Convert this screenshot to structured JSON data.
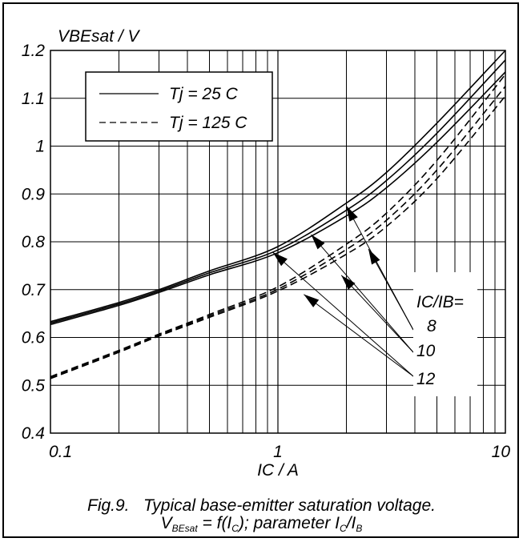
{
  "chart_data": {
    "type": "line",
    "title": "",
    "ylabel": "VBEsat / V",
    "xlabel": "IC / A",
    "x_scale": "log",
    "xlim": [
      0.1,
      10
    ],
    "ylim": [
      0.4,
      1.2
    ],
    "grid": true,
    "x_tick_labels": [
      "0.1",
      "1",
      "10"
    ],
    "y_tick_labels": [
      "1.2",
      "1.1",
      "1",
      "0.9",
      "0.8",
      "0.7",
      "0.6",
      "0.5",
      "0.4"
    ],
    "legend": {
      "placement": "top-left",
      "entries": [
        {
          "label": "Tj = 25 C",
          "style": "solid"
        },
        {
          "label": "Tj = 125 C",
          "style": "dashed"
        }
      ]
    },
    "annotations": {
      "header": "IC/IB=",
      "values": [
        "8",
        "10",
        "12"
      ]
    },
    "x": [
      0.1,
      0.2,
      0.3,
      0.5,
      1,
      2,
      3,
      5,
      10
    ],
    "series": [
      {
        "style": "solid",
        "ic_ib": "8",
        "values": [
          0.633,
          0.673,
          0.7,
          0.739,
          0.79,
          0.881,
          0.945,
          1.048,
          1.2
        ]
      },
      {
        "style": "solid",
        "ic_ib": "10",
        "values": [
          0.63,
          0.67,
          0.697,
          0.735,
          0.783,
          0.866,
          0.928,
          1.027,
          1.18
        ]
      },
      {
        "style": "solid",
        "ic_ib": "12",
        "values": [
          0.627,
          0.667,
          0.694,
          0.731,
          0.777,
          0.854,
          0.913,
          1.008,
          1.155
        ]
      },
      {
        "style": "dashed",
        "ic_ib": "8",
        "values": [
          0.518,
          0.573,
          0.607,
          0.648,
          0.706,
          0.795,
          0.86,
          0.97,
          1.15
        ]
      },
      {
        "style": "dashed",
        "ic_ib": "10",
        "values": [
          0.516,
          0.571,
          0.605,
          0.645,
          0.701,
          0.784,
          0.845,
          0.95,
          1.125
        ]
      },
      {
        "style": "dashed",
        "ic_ib": "12",
        "values": [
          0.514,
          0.569,
          0.603,
          0.642,
          0.697,
          0.774,
          0.832,
          0.932,
          1.105
        ]
      }
    ]
  },
  "caption": {
    "line1": "Fig.9.   Typical base-emitter saturation voltage.",
    "v": "V",
    "v_sub": "BEsat",
    "mid": " = f(I",
    "c_sub": "C",
    "mid2": "); parameter I",
    "c_sub2": "C",
    "slash": "/I",
    "b_sub": "B"
  }
}
